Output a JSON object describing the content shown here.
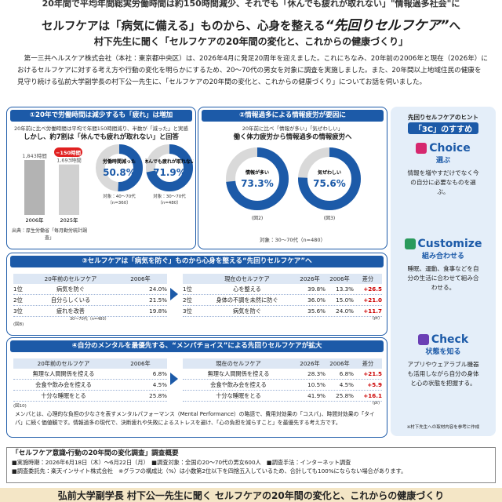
{
  "top_line": "20年間で平均年間総実労働時間は約150時間減少、それでも「休んでも疲れが取れない」\"情報過多社会\"に",
  "headline": {
    "main": "セルフケアは「病気に備える」ものから、心身を整える",
    "accent": "“先回りセルフケア”",
    "tail": "へ"
  },
  "subtitle": "村下先生に聞く「セルフケアの20年間の変化と、これからの健康づくり」",
  "intro": "第一三共ヘルスケア株式会社（本社：東京都中央区）は、2026年4月に発足20周年を迎えました。これにちなみ、20年前の2006年と現在（2026年）におけるセルフケアに対する考え方や行動の変化を明らかにするため、20～70代の男女を対象に調査を実施しました。また、20年間以上地域住民の健康を見守り続ける弘前大学副学長の村下公一先生に、「セルフケアの20年間の変化と、これからの健康づくり」についてお話を伺いました。",
  "section1": {
    "title": "①20年で労働時間は減少するも「疲れ」は増加",
    "note": "20年前に比べ労働時間は平均で年間150時間減り、半数が「減った」と実感",
    "lead": "しかし、約7割は「休んでも疲れが取れない」と回答",
    "bars": [
      {
        "year": "2006年",
        "value": 1843,
        "label": "1,843時間"
      },
      {
        "year": "2025年",
        "value": 1693,
        "label": "1,693時間"
      }
    ],
    "diff": "−150時間",
    "source": "出典：厚生労働省「毎月勤労統計調査」",
    "donuts": [
      {
        "label": "労働時間減った",
        "value": 50.8,
        "value_label": "50.8%",
        "target": "対象：40～70代（n=360）"
      },
      {
        "label": "休んでも疲れが取れない",
        "value": 71.9,
        "value_label": "71.9%",
        "target": "対象：30～70代（n=480）"
      }
    ]
  },
  "section2": {
    "title": "②情報過多による情報疲労が要因に",
    "note": "20年前に比べ「情報が多い」「気ぜわしい」",
    "lead": "働く体力疲労から情報過多の情報疲労へ",
    "donuts": [
      {
        "label": "情報が多い",
        "value": 73.3,
        "value_label": "73.3%",
        "figure": "(図2)"
      },
      {
        "label": "気ぜわしい",
        "value": 75.6,
        "value_label": "75.6%",
        "figure": "(図3)"
      }
    ],
    "target": "対象：30～70代（n=480）"
  },
  "section3": {
    "title": "③セルフケアは「病気を防ぐ」ものから心身を整える“先回りセルフケア”へ",
    "left": {
      "headers": [
        "20年前のセルフケア",
        "2006年"
      ],
      "rows": [
        [
          "1位",
          "病気を防ぐ",
          "24.0%"
        ],
        [
          "2位",
          "自分らしくいる",
          "21.5%"
        ],
        [
          "3位",
          "疲れを改善",
          "19.8%"
        ]
      ],
      "figure": "(図8)",
      "note": "30～70代（n=480）"
    },
    "right": {
      "headers": [
        "現在のセルフケア",
        "2026年",
        "2006年",
        "差分"
      ],
      "rows": [
        [
          "1位",
          "心を整える",
          "39.8%",
          "13.3%",
          "+26.5"
        ],
        [
          "2位",
          "身体の不調を未然に防ぐ",
          "36.0%",
          "15.0%",
          "+21.0"
        ],
        [
          "3位",
          "病気を防ぐ",
          "35.6%",
          "24.0%",
          "+11.7"
        ]
      ],
      "note": "(pt)"
    }
  },
  "section4": {
    "title": "④自分のメンタルを最優先する、“メンパチョイス”による先回りセルフケアが拡大",
    "left": {
      "headers": [
        "20年前のセルフケア",
        "2006年"
      ],
      "rows": [
        [
          "無理な人間関係を控える",
          "6.8%"
        ],
        [
          "会食や飲み会を控える",
          "4.5%"
        ],
        [
          "十分な睡眠をとる",
          "25.8%"
        ]
      ],
      "figure": "(図10)"
    },
    "right": {
      "headers": [
        "現在のセルフケア",
        "2026年",
        "2006年",
        "差分"
      ],
      "rows": [
        [
          "無理な人間関係を控える",
          "28.3%",
          "6.8%",
          "+21.5"
        ],
        [
          "会食や飲み会を控える",
          "10.5%",
          "4.5%",
          "+5.9"
        ],
        [
          "十分な睡眠をとる",
          "41.9%",
          "25.8%",
          "+16.1"
        ]
      ],
      "note": "(pt)"
    },
    "paragraph": "メンパとは、心理的な負担の少なさを表すメンタルパフォーマンス（Mental Performance）の略語で、費用対効果の「コスパ」、時間対効果の「タイパ」に続く価値観です。情報過多の現代で、決断疲れや失敗によるストレスを避け、「心の負担を減らすこと」を最優先する考え方です。"
  },
  "sidebar": {
    "heading": "先回りセルフケアのヒント",
    "title": "「3C」のすすめ",
    "tips": [
      {
        "en": "Choice",
        "jp": "選ぶ",
        "desc": "情報を増やすだけでなく今の自分に必要なものを選ぶ。"
      },
      {
        "en": "Customize",
        "jp": "組み合わせる",
        "desc": "睡眠、運動、食事などを自分の生活に合わせて組み合わせる。"
      },
      {
        "en": "Check",
        "jp": "状態を知る",
        "desc": "アプリやウェアラブル機器も活用しながら自分の身体と心の状態を把握する。"
      }
    ],
    "footnote": "※村下先生への取材内容を参考に作成"
  },
  "survey": {
    "title": "「セルフケア意識・行動の20年間の変化調査」調査概要",
    "lines": [
      "■実施時期：2026年6月18日（木）～6月22日（月）　■調査対象：全国の20～70代の男女600人　■調査手法：インターネット調査",
      "■調査委託先：楽天インサイト株式会社　※グラフの構成比（%）は小数第2位以下を四捨五入しているため、合計しても100%にならない場合があります。"
    ]
  },
  "banner": "弘前大学副学長 村下公一先生に聞く セルフケアの20年間の変化と、これからの健康づくり"
}
